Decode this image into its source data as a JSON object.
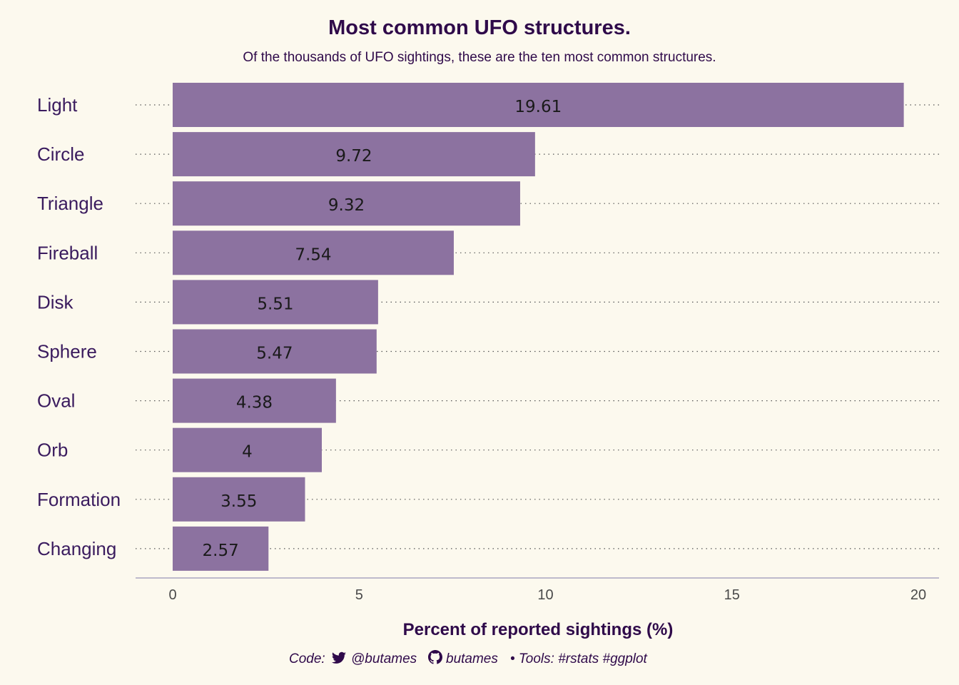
{
  "chart_data": {
    "type": "bar",
    "orientation": "horizontal",
    "title": "Most common UFO structures.",
    "subtitle": "Of the thousands of UFO sightings, these are the ten most common structures.",
    "xlabel": "Percent of reported sightings (%)",
    "ylabel": "",
    "categories": [
      "Light",
      "Circle",
      "Triangle",
      "Fireball",
      "Disk",
      "Sphere",
      "Oval",
      "Orb",
      "Formation",
      "Changing"
    ],
    "values": [
      19.61,
      9.72,
      9.32,
      7.54,
      5.51,
      5.47,
      4.38,
      4,
      3.55,
      2.57
    ],
    "value_labels": [
      "19.61",
      "9.72",
      "9.32",
      "7.54",
      "5.51",
      "5.47",
      "4.38",
      "4",
      "3.55",
      "2.57"
    ],
    "xlim": [
      0,
      20
    ],
    "xticks": [
      0,
      5,
      10,
      15,
      20
    ],
    "grid": "dotted-horizontal",
    "bar_color": "#8c72a0",
    "text_color": "#2f0a4a",
    "background_color": "#fcf9ee"
  },
  "caption": {
    "prefix": "Code:",
    "twitter_icon": "twitter-bird-icon",
    "twitter_handle": "@butames",
    "github_icon": "github-icon",
    "github_handle": "butames",
    "suffix": "• Tools: #rstats #ggplot"
  }
}
